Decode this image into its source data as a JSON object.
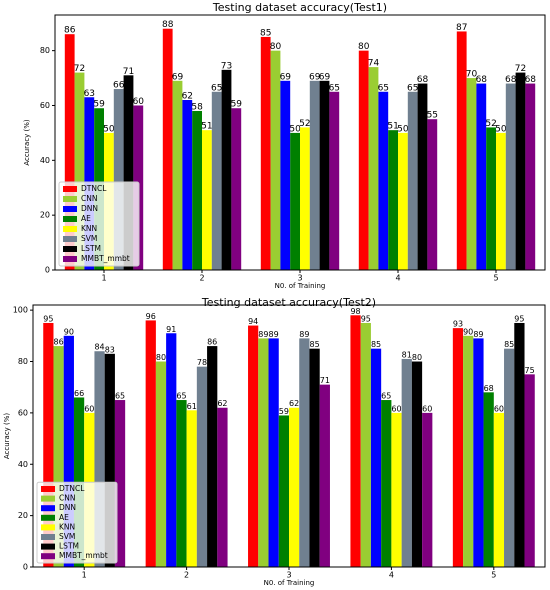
{
  "chart_data": [
    {
      "type": "bar",
      "title": "Testing dataset accuracy(Test1)",
      "x_label": "N0. of Training",
      "y_label": "Accuracy (%)",
      "categories": [
        "1",
        "2",
        "3",
        "4",
        "5"
      ],
      "ylim": [
        0,
        93
      ],
      "yticks": [
        0,
        20,
        40,
        60,
        80
      ],
      "legend": "lower left",
      "series": [
        {
          "name": "DTNCL",
          "color": "#ff0000",
          "values": [
            86,
            88,
            85,
            80,
            87
          ]
        },
        {
          "name": "CNN",
          "color": "#9acd32",
          "values": [
            72,
            69,
            80,
            74,
            70
          ]
        },
        {
          "name": "DNN",
          "color": "#0000ff",
          "values": [
            63,
            62,
            69,
            65,
            68
          ]
        },
        {
          "name": "AE",
          "color": "#008000",
          "values": [
            59,
            58,
            50,
            51,
            52
          ]
        },
        {
          "name": "KNN",
          "color": "#ffff00",
          "values": [
            50,
            51,
            52,
            50,
            50
          ]
        },
        {
          "name": "SVM",
          "color": "#708090",
          "values": [
            66,
            65,
            69,
            65,
            68
          ]
        },
        {
          "name": "LSTM",
          "color": "#000000",
          "values": [
            71,
            73,
            69,
            68,
            72
          ]
        },
        {
          "name": "MMBT_mmbt",
          "color": "#800080",
          "values": [
            60,
            59,
            65,
            55,
            68
          ]
        }
      ]
    },
    {
      "type": "bar",
      "title": "Testing dataset accuracy(Test2)",
      "x_label": "N0. of Training",
      "y_label": "Accuracy (%)",
      "categories": [
        "1",
        "2",
        "3",
        "4",
        "5"
      ],
      "ylim": [
        0,
        102
      ],
      "yticks": [
        0,
        20,
        40,
        60,
        80,
        100
      ],
      "legend": "lower left",
      "series": [
        {
          "name": "DTNCL",
          "color": "#ff0000",
          "values": [
            95,
            96,
            94,
            98,
            93
          ]
        },
        {
          "name": "CNN",
          "color": "#9acd32",
          "values": [
            86,
            80,
            89,
            95,
            90
          ]
        },
        {
          "name": "DNN",
          "color": "#0000ff",
          "values": [
            90,
            91,
            89,
            85,
            89
          ]
        },
        {
          "name": "AE",
          "color": "#008000",
          "values": [
            66,
            65,
            59,
            65,
            68
          ]
        },
        {
          "name": "KNN",
          "color": "#ffff00",
          "values": [
            60,
            61,
            62,
            60,
            60
          ]
        },
        {
          "name": "SVM",
          "color": "#708090",
          "values": [
            84,
            78,
            89,
            81,
            85
          ]
        },
        {
          "name": "LSTM",
          "color": "#000000",
          "values": [
            83,
            86,
            85,
            80,
            95
          ]
        },
        {
          "name": "MMBT_mmbt",
          "color": "#800080",
          "values": [
            65,
            62,
            71,
            60,
            75
          ]
        }
      ]
    }
  ]
}
